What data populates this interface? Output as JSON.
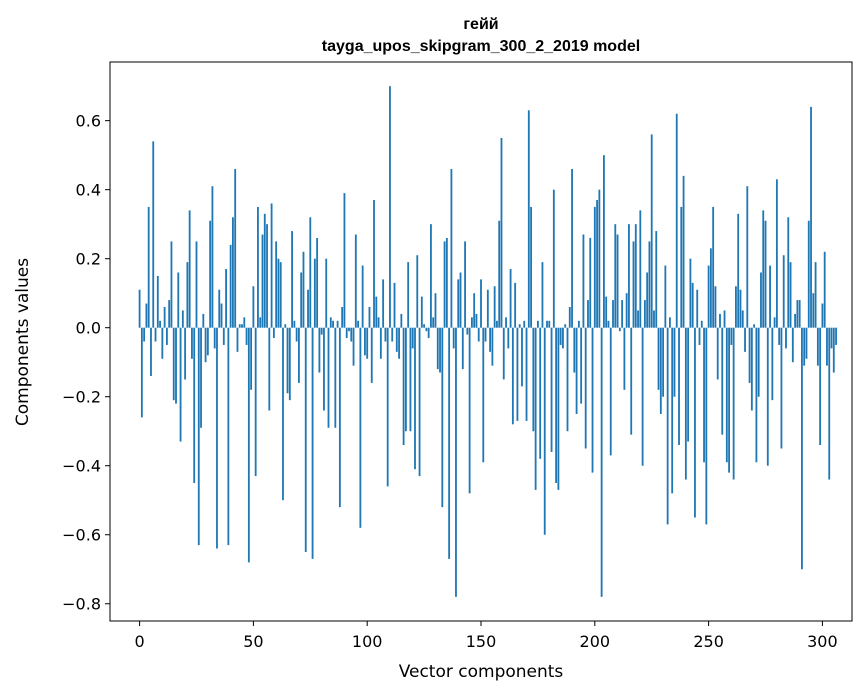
{
  "chart_data": {
    "type": "bar",
    "title_line1": "гейй",
    "title_line2": "tayga_upos_skipgram_300_2_2019 model",
    "xlabel": "Vector components",
    "ylabel": "Components values",
    "xlim": [
      -13,
      313
    ],
    "ylim": [
      -0.85,
      0.77
    ],
    "xticks": [
      0,
      50,
      100,
      150,
      200,
      250,
      300
    ],
    "xtick_labels": [
      "0",
      "50",
      "100",
      "150",
      "200",
      "250",
      "300"
    ],
    "yticks": [
      -0.8,
      -0.6,
      -0.4,
      -0.2,
      0.0,
      0.2,
      0.4,
      0.6
    ],
    "ytick_labels": [
      "−0.8",
      "−0.6",
      "−0.4",
      "−0.2",
      "0.0",
      "0.2",
      "0.4",
      "0.6"
    ],
    "bar_color": "#1f77b4",
    "values": [
      0.11,
      -0.26,
      -0.04,
      0.07,
      0.35,
      -0.14,
      0.54,
      -0.04,
      0.15,
      0.02,
      -0.09,
      0.06,
      -0.05,
      0.08,
      0.25,
      -0.21,
      -0.22,
      0.16,
      -0.33,
      0.05,
      -0.15,
      0.19,
      0.34,
      -0.09,
      -0.45,
      0.25,
      -0.63,
      -0.29,
      0.04,
      -0.1,
      -0.08,
      0.31,
      0.41,
      -0.06,
      -0.64,
      0.11,
      0.07,
      -0.05,
      0.17,
      -0.63,
      0.24,
      0.32,
      0.46,
      -0.07,
      0.01,
      0.01,
      0.03,
      -0.05,
      -0.68,
      -0.18,
      0.12,
      -0.43,
      0.35,
      0.03,
      0.27,
      0.33,
      0.3,
      -0.24,
      0.36,
      -0.03,
      0.25,
      0.2,
      0.19,
      -0.5,
      0.01,
      -0.19,
      -0.21,
      0.28,
      0.02,
      -0.04,
      -0.16,
      0.16,
      0.22,
      -0.65,
      0.11,
      0.32,
      -0.67,
      0.2,
      0.26,
      -0.13,
      -0.02,
      -0.24,
      0.2,
      -0.29,
      0.03,
      0.02,
      -0.29,
      0.02,
      -0.52,
      0.06,
      0.39,
      -0.03,
      -0.01,
      -0.04,
      -0.11,
      0.27,
      0.02,
      -0.58,
      0.18,
      -0.08,
      -0.09,
      0.06,
      -0.16,
      0.37,
      0.09,
      0.03,
      -0.09,
      0.14,
      -0.04,
      -0.46,
      0.7,
      -0.04,
      0.13,
      -0.07,
      -0.09,
      0.04,
      -0.34,
      -0.3,
      0.19,
      -0.3,
      -0.06,
      -0.41,
      0.21,
      -0.43,
      0.09,
      0.01,
      -0.01,
      -0.03,
      0.3,
      0.03,
      0.1,
      -0.12,
      -0.13,
      -0.52,
      0.25,
      0.26,
      -0.67,
      0.46,
      -0.06,
      -0.78,
      0.14,
      0.16,
      -0.12,
      0.25,
      -0.02,
      -0.48,
      0.03,
      0.1,
      0.04,
      -0.04,
      0.14,
      -0.39,
      -0.04,
      0.11,
      -0.07,
      -0.11,
      0.12,
      0.02,
      0.31,
      0.55,
      -0.15,
      0.03,
      -0.06,
      0.17,
      -0.28,
      0.13,
      -0.27,
      0.01,
      -0.17,
      0.02,
      -0.27,
      0.63,
      0.35,
      -0.3,
      -0.47,
      0.02,
      -0.38,
      0.19,
      -0.6,
      0.02,
      0.02,
      -0.36,
      0.4,
      -0.45,
      -0.47,
      -0.05,
      -0.06,
      0.01,
      -0.3,
      0.06,
      0.46,
      -0.13,
      -0.25,
      0.02,
      -0.22,
      0.27,
      -0.35,
      0.08,
      0.26,
      -0.42,
      0.35,
      0.37,
      0.4,
      -0.78,
      0.5,
      0.09,
      0.02,
      -0.37,
      0.08,
      0.3,
      0.27,
      -0.01,
      0.08,
      -0.18,
      0.1,
      0.3,
      -0.31,
      0.25,
      0.3,
      0.05,
      0.34,
      -0.4,
      0.08,
      0.16,
      0.25,
      0.56,
      0.05,
      0.28,
      -0.18,
      -0.25,
      -0.2,
      0.18,
      -0.57,
      0.03,
      -0.48,
      -0.2,
      0.62,
      -0.34,
      0.35,
      0.44,
      -0.44,
      -0.33,
      0.2,
      0.13,
      -0.55,
      0.11,
      -0.05,
      0.02,
      -0.39,
      -0.57,
      0.18,
      0.23,
      0.35,
      0.12,
      -0.15,
      0.04,
      -0.31,
      0.05,
      -0.39,
      -0.42,
      -0.05,
      -0.44,
      0.12,
      0.33,
      0.11,
      0.05,
      -0.07,
      0.41,
      -0.16,
      -0.24,
      0.01,
      -0.39,
      -0.2,
      0.16,
      0.34,
      0.31,
      -0.4,
      0.18,
      -0.21,
      0.03,
      0.43,
      -0.05,
      -0.35,
      0.21,
      -0.06,
      0.32,
      0.19,
      -0.1,
      0.04,
      0.08,
      0.08,
      -0.7,
      -0.11,
      -0.09,
      0.31,
      0.64,
      0.1,
      0.19,
      -0.11,
      -0.34,
      0.07,
      0.22,
      -0.11,
      -0.44,
      -0.06,
      -0.13,
      -0.05
    ]
  }
}
